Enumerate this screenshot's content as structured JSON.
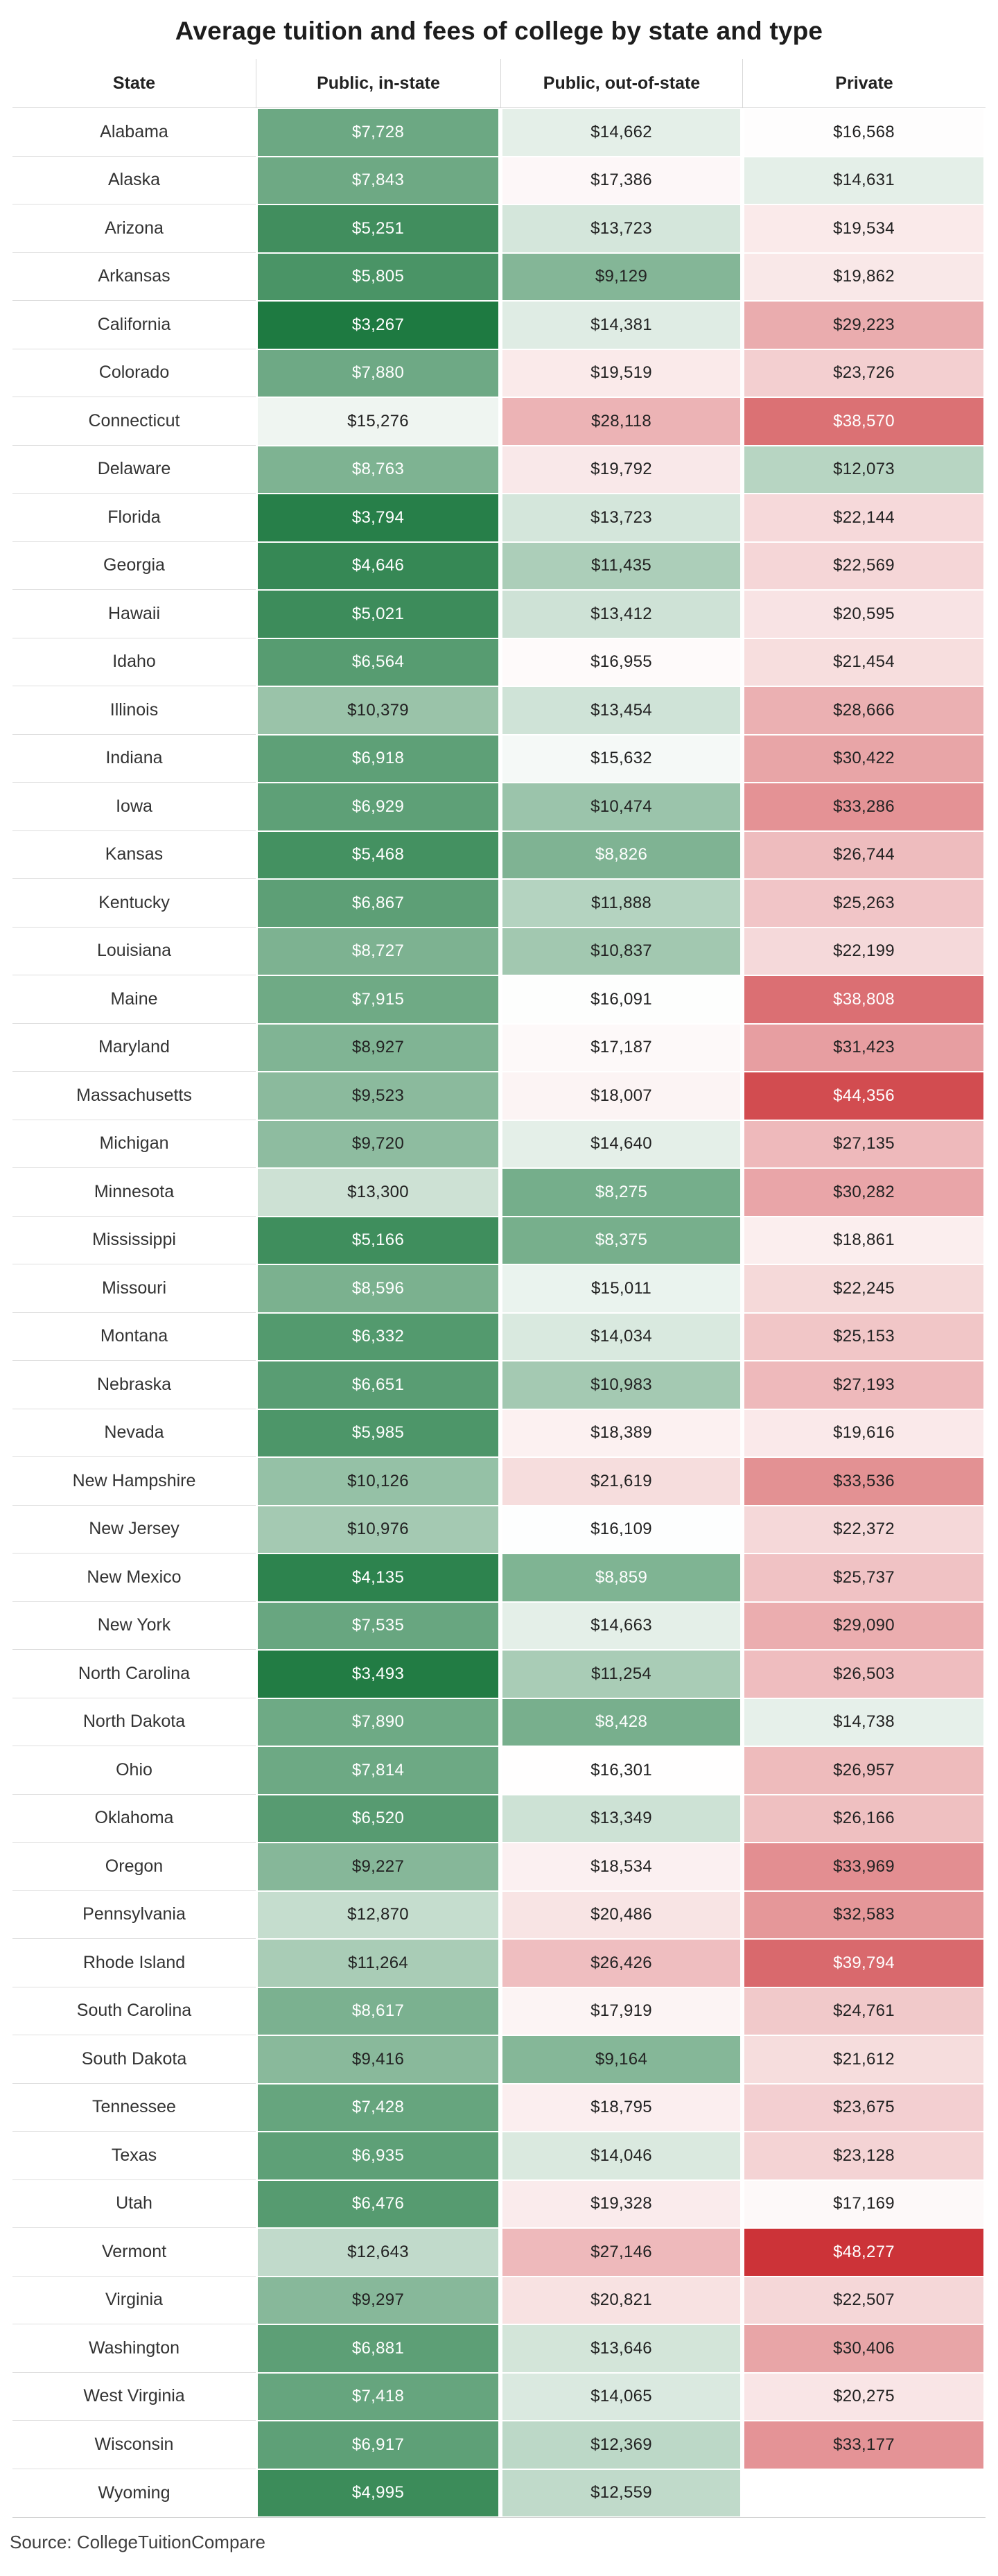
{
  "page": {
    "source": "Source: CollegeTuitionCompare"
  },
  "chart_data": {
    "type": "heatmap",
    "title": "Average tuition and fees of college by state and type",
    "columns": [
      "State",
      "Public, in-state",
      "Public, out-of-state",
      "Private"
    ],
    "value_format": "$#,###",
    "color_scale": {
      "description": "diverging green-white-red, anchored at data min/mid/max",
      "min": 3267,
      "mid": 16200,
      "max": 48277,
      "min_color": "#1e7a41",
      "mid_color": "#ffffff",
      "max_color": "#cc3338",
      "text_dark": "#222222",
      "text_light": "#ffffff",
      "luminance_threshold": 160.5
    },
    "rows": [
      {
        "state": "Alabama",
        "public_in_state": 7728,
        "public_out_of_state": 14662,
        "private": 16568
      },
      {
        "state": "Alaska",
        "public_in_state": 7843,
        "public_out_of_state": 17386,
        "private": 14631
      },
      {
        "state": "Arizona",
        "public_in_state": 5251,
        "public_out_of_state": 13723,
        "private": 19534
      },
      {
        "state": "Arkansas",
        "public_in_state": 5805,
        "public_out_of_state": 9129,
        "private": 19862
      },
      {
        "state": "California",
        "public_in_state": 3267,
        "public_out_of_state": 14381,
        "private": 29223
      },
      {
        "state": "Colorado",
        "public_in_state": 7880,
        "public_out_of_state": 19519,
        "private": 23726
      },
      {
        "state": "Connecticut",
        "public_in_state": 15276,
        "public_out_of_state": 28118,
        "private": 38570
      },
      {
        "state": "Delaware",
        "public_in_state": 8763,
        "public_out_of_state": 19792,
        "private": 12073
      },
      {
        "state": "Florida",
        "public_in_state": 3794,
        "public_out_of_state": 13723,
        "private": 22144
      },
      {
        "state": "Georgia",
        "public_in_state": 4646,
        "public_out_of_state": 11435,
        "private": 22569
      },
      {
        "state": "Hawaii",
        "public_in_state": 5021,
        "public_out_of_state": 13412,
        "private": 20595
      },
      {
        "state": "Idaho",
        "public_in_state": 6564,
        "public_out_of_state": 16955,
        "private": 21454
      },
      {
        "state": "Illinois",
        "public_in_state": 10379,
        "public_out_of_state": 13454,
        "private": 28666
      },
      {
        "state": "Indiana",
        "public_in_state": 6918,
        "public_out_of_state": 15632,
        "private": 30422
      },
      {
        "state": "Iowa",
        "public_in_state": 6929,
        "public_out_of_state": 10474,
        "private": 33286
      },
      {
        "state": "Kansas",
        "public_in_state": 5468,
        "public_out_of_state": 8826,
        "private": 26744
      },
      {
        "state": "Kentucky",
        "public_in_state": 6867,
        "public_out_of_state": 11888,
        "private": 25263
      },
      {
        "state": "Louisiana",
        "public_in_state": 8727,
        "public_out_of_state": 10837,
        "private": 22199
      },
      {
        "state": "Maine",
        "public_in_state": 7915,
        "public_out_of_state": 16091,
        "private": 38808
      },
      {
        "state": "Maryland",
        "public_in_state": 8927,
        "public_out_of_state": 17187,
        "private": 31423
      },
      {
        "state": "Massachusetts",
        "public_in_state": 9523,
        "public_out_of_state": 18007,
        "private": 44356
      },
      {
        "state": "Michigan",
        "public_in_state": 9720,
        "public_out_of_state": 14640,
        "private": 27135
      },
      {
        "state": "Minnesota",
        "public_in_state": 13300,
        "public_out_of_state": 8275,
        "private": 30282
      },
      {
        "state": "Mississippi",
        "public_in_state": 5166,
        "public_out_of_state": 8375,
        "private": 18861
      },
      {
        "state": "Missouri",
        "public_in_state": 8596,
        "public_out_of_state": 15011,
        "private": 22245
      },
      {
        "state": "Montana",
        "public_in_state": 6332,
        "public_out_of_state": 14034,
        "private": 25153
      },
      {
        "state": "Nebraska",
        "public_in_state": 6651,
        "public_out_of_state": 10983,
        "private": 27193
      },
      {
        "state": "Nevada",
        "public_in_state": 5985,
        "public_out_of_state": 18389,
        "private": 19616
      },
      {
        "state": "New Hampshire",
        "public_in_state": 10126,
        "public_out_of_state": 21619,
        "private": 33536
      },
      {
        "state": "New Jersey",
        "public_in_state": 10976,
        "public_out_of_state": 16109,
        "private": 22372
      },
      {
        "state": "New Mexico",
        "public_in_state": 4135,
        "public_out_of_state": 8859,
        "private": 25737
      },
      {
        "state": "New York",
        "public_in_state": 7535,
        "public_out_of_state": 14663,
        "private": 29090
      },
      {
        "state": "North Carolina",
        "public_in_state": 3493,
        "public_out_of_state": 11254,
        "private": 26503
      },
      {
        "state": "North Dakota",
        "public_in_state": 7890,
        "public_out_of_state": 8428,
        "private": 14738
      },
      {
        "state": "Ohio",
        "public_in_state": 7814,
        "public_out_of_state": 16301,
        "private": 26957
      },
      {
        "state": "Oklahoma",
        "public_in_state": 6520,
        "public_out_of_state": 13349,
        "private": 26166
      },
      {
        "state": "Oregon",
        "public_in_state": 9227,
        "public_out_of_state": 18534,
        "private": 33969
      },
      {
        "state": "Pennsylvania",
        "public_in_state": 12870,
        "public_out_of_state": 20486,
        "private": 32583
      },
      {
        "state": "Rhode Island",
        "public_in_state": 11264,
        "public_out_of_state": 26426,
        "private": 39794
      },
      {
        "state": "South Carolina",
        "public_in_state": 8617,
        "public_out_of_state": 17919,
        "private": 24761
      },
      {
        "state": "South Dakota",
        "public_in_state": 9416,
        "public_out_of_state": 9164,
        "private": 21612
      },
      {
        "state": "Tennessee",
        "public_in_state": 7428,
        "public_out_of_state": 18795,
        "private": 23675
      },
      {
        "state": "Texas",
        "public_in_state": 6935,
        "public_out_of_state": 14046,
        "private": 23128
      },
      {
        "state": "Utah",
        "public_in_state": 6476,
        "public_out_of_state": 19328,
        "private": 17169
      },
      {
        "state": "Vermont",
        "public_in_state": 12643,
        "public_out_of_state": 27146,
        "private": 48277
      },
      {
        "state": "Virginia",
        "public_in_state": 9297,
        "public_out_of_state": 20821,
        "private": 22507
      },
      {
        "state": "Washington",
        "public_in_state": 6881,
        "public_out_of_state": 13646,
        "private": 30406
      },
      {
        "state": "West Virginia",
        "public_in_state": 7418,
        "public_out_of_state": 14065,
        "private": 20275
      },
      {
        "state": "Wisconsin",
        "public_in_state": 6917,
        "public_out_of_state": 12369,
        "private": 33177
      },
      {
        "state": "Wyoming",
        "public_in_state": 4995,
        "public_out_of_state": 12559,
        "private": null
      }
    ]
  }
}
